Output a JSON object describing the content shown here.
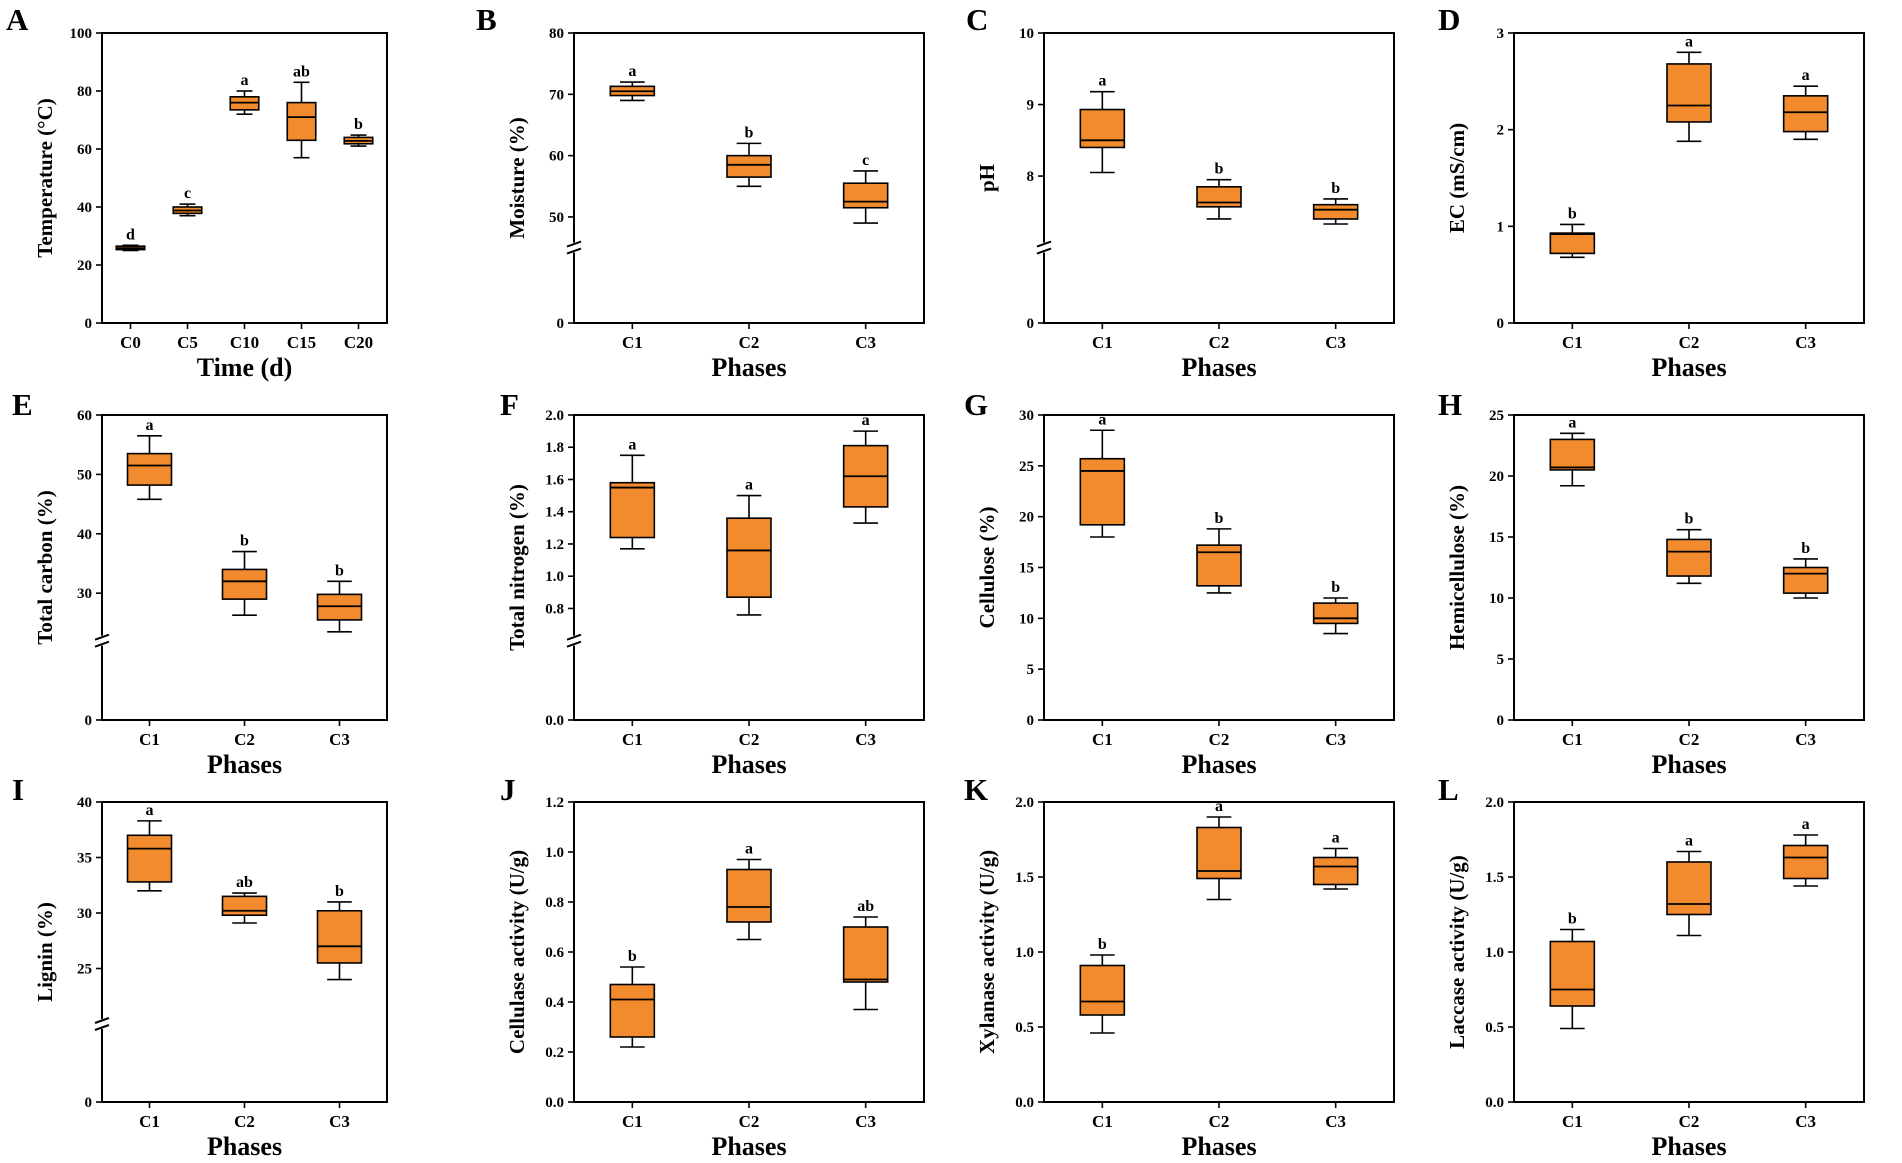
{
  "figure": {
    "box_fill": "#F28A2E",
    "box_stroke": "#000000",
    "axis_color": "#000000"
  },
  "chart_data": [
    {
      "panel": "A",
      "type": "box",
      "ylabel": "Temperature (°C)",
      "xlabel": "Time (d)",
      "ylim": [
        0,
        100
      ],
      "yticks": [
        0,
        20,
        40,
        60,
        80,
        100
      ],
      "axis_break": false,
      "categories": [
        "C0",
        "C5",
        "C10",
        "C15",
        "C20"
      ],
      "boxes": [
        {
          "min": 25,
          "q1": 25.3,
          "median": 25.8,
          "q3": 26.5,
          "max": 26.8,
          "sig": "d"
        },
        {
          "min": 37,
          "q1": 37.8,
          "median": 38.8,
          "q3": 40,
          "max": 41,
          "sig": "c"
        },
        {
          "min": 72,
          "q1": 73.5,
          "median": 76,
          "q3": 78,
          "max": 80,
          "sig": "a"
        },
        {
          "min": 57,
          "q1": 63,
          "median": 71,
          "q3": 76,
          "max": 83,
          "sig": "ab"
        },
        {
          "min": 61,
          "q1": 61.8,
          "median": 62.8,
          "q3": 64,
          "max": 64.8,
          "sig": "b"
        }
      ]
    },
    {
      "panel": "B",
      "type": "box",
      "ylabel": "Moisture (%)",
      "xlabel": "Phases",
      "ylim": [
        0,
        80
      ],
      "yticks": [
        0,
        50,
        60,
        70,
        80
      ],
      "axis_break": true,
      "segments": [
        [
          0,
          0
        ],
        [
          45,
          80
        ]
      ],
      "categories": [
        "C1",
        "C2",
        "C3"
      ],
      "boxes": [
        {
          "min": 69,
          "q1": 69.8,
          "median": 70.5,
          "q3": 71.3,
          "max": 72,
          "sig": "a"
        },
        {
          "min": 55,
          "q1": 56.5,
          "median": 58.5,
          "q3": 60,
          "max": 62,
          "sig": "b"
        },
        {
          "min": 49,
          "q1": 51.5,
          "median": 52.5,
          "q3": 55.5,
          "max": 57.5,
          "sig": "c"
        }
      ]
    },
    {
      "panel": "C",
      "type": "box",
      "ylabel": "pH",
      "xlabel": "Phases",
      "ylim": [
        0,
        10
      ],
      "yticks": [
        0,
        8,
        9,
        10
      ],
      "axis_break": true,
      "segments": [
        [
          0,
          0
        ],
        [
          7,
          10
        ]
      ],
      "categories": [
        "C1",
        "C2",
        "C3"
      ],
      "boxes": [
        {
          "min": 8.05,
          "q1": 8.4,
          "median": 8.5,
          "q3": 8.93,
          "max": 9.18,
          "sig": "a"
        },
        {
          "min": 7.4,
          "q1": 7.57,
          "median": 7.63,
          "q3": 7.85,
          "max": 7.95,
          "sig": "b"
        },
        {
          "min": 7.33,
          "q1": 7.4,
          "median": 7.53,
          "q3": 7.6,
          "max": 7.68,
          "sig": "b"
        }
      ]
    },
    {
      "panel": "D",
      "type": "box",
      "ylabel": "EC (mS/cm)",
      "xlabel": "Phases",
      "ylim": [
        0,
        3
      ],
      "yticks": [
        0,
        1,
        2,
        3
      ],
      "axis_break": false,
      "categories": [
        "C1",
        "C2",
        "C3"
      ],
      "boxes": [
        {
          "min": 0.68,
          "q1": 0.72,
          "median": 0.92,
          "q3": 0.93,
          "max": 1.02,
          "sig": "b"
        },
        {
          "min": 1.88,
          "q1": 2.08,
          "median": 2.25,
          "q3": 2.68,
          "max": 2.8,
          "sig": "a"
        },
        {
          "min": 1.9,
          "q1": 1.98,
          "median": 2.18,
          "q3": 2.35,
          "max": 2.45,
          "sig": "a"
        }
      ]
    },
    {
      "panel": "E",
      "type": "box",
      "ylabel": "Total carbon (%)",
      "xlabel": "Phases",
      "ylim": [
        0,
        60
      ],
      "yticks": [
        0,
        30,
        40,
        50,
        60
      ],
      "axis_break": true,
      "segments": [
        [
          0,
          0
        ],
        [
          22,
          60
        ]
      ],
      "categories": [
        "C1",
        "C2",
        "C3"
      ],
      "boxes": [
        {
          "min": 45.8,
          "q1": 48.2,
          "median": 51.5,
          "q3": 53.5,
          "max": 56.5,
          "sig": "a"
        },
        {
          "min": 26.3,
          "q1": 29,
          "median": 32,
          "q3": 34,
          "max": 37,
          "sig": "b"
        },
        {
          "min": 23.5,
          "q1": 25.5,
          "median": 27.8,
          "q3": 29.8,
          "max": 32,
          "sig": "b"
        }
      ]
    },
    {
      "panel": "F",
      "type": "box",
      "ylabel": "Total nitrogen (%)",
      "xlabel": "Phases",
      "ylim": [
        0,
        2.0
      ],
      "yticks": [
        0.0,
        0.8,
        1.0,
        1.2,
        1.4,
        1.6,
        1.8,
        2.0
      ],
      "axis_break": true,
      "segments": [
        [
          0,
          0
        ],
        [
          0.6,
          2.0
        ]
      ],
      "categories": [
        "C1",
        "C2",
        "C3"
      ],
      "boxes": [
        {
          "min": 1.17,
          "q1": 1.24,
          "median": 1.55,
          "q3": 1.58,
          "max": 1.75,
          "sig": "a"
        },
        {
          "min": 0.76,
          "q1": 0.87,
          "median": 1.16,
          "q3": 1.36,
          "max": 1.5,
          "sig": "a"
        },
        {
          "min": 1.33,
          "q1": 1.43,
          "median": 1.62,
          "q3": 1.81,
          "max": 1.9,
          "sig": "a"
        }
      ]
    },
    {
      "panel": "G",
      "type": "box",
      "ylabel": "Cellulose (%)",
      "xlabel": "Phases",
      "ylim": [
        0,
        30
      ],
      "yticks": [
        0,
        5,
        10,
        15,
        20,
        25,
        30
      ],
      "axis_break": false,
      "categories": [
        "C1",
        "C2",
        "C3"
      ],
      "boxes": [
        {
          "min": 18,
          "q1": 19.2,
          "median": 24.5,
          "q3": 25.7,
          "max": 28.5,
          "sig": "a"
        },
        {
          "min": 12.5,
          "q1": 13.2,
          "median": 16.5,
          "q3": 17.2,
          "max": 18.8,
          "sig": "b"
        },
        {
          "min": 8.5,
          "q1": 9.5,
          "median": 10,
          "q3": 11.5,
          "max": 12,
          "sig": "b"
        }
      ]
    },
    {
      "panel": "H",
      "type": "box",
      "ylabel": "Hemicellulose (%)",
      "xlabel": "Phases",
      "ylim": [
        0,
        25
      ],
      "yticks": [
        0,
        5,
        10,
        15,
        20,
        25
      ],
      "axis_break": false,
      "categories": [
        "C1",
        "C2",
        "C3"
      ],
      "boxes": [
        {
          "min": 19.2,
          "q1": 20.5,
          "median": 20.7,
          "q3": 23,
          "max": 23.5,
          "sig": "a"
        },
        {
          "min": 11.2,
          "q1": 11.8,
          "median": 13.8,
          "q3": 14.8,
          "max": 15.6,
          "sig": "b"
        },
        {
          "min": 10,
          "q1": 10.4,
          "median": 12,
          "q3": 12.5,
          "max": 13.2,
          "sig": "b"
        }
      ]
    },
    {
      "panel": "I",
      "type": "box",
      "ylabel": "Lignin (%)",
      "xlabel": "Phases",
      "ylim": [
        0,
        40
      ],
      "yticks": [
        0,
        25,
        30,
        35,
        40
      ],
      "axis_break": true,
      "segments": [
        [
          0,
          0
        ],
        [
          20,
          40
        ]
      ],
      "categories": [
        "C1",
        "C2",
        "C3"
      ],
      "boxes": [
        {
          "min": 32,
          "q1": 32.8,
          "median": 35.8,
          "q3": 37,
          "max": 38.3,
          "sig": "a"
        },
        {
          "min": 29.1,
          "q1": 29.8,
          "median": 30.2,
          "q3": 31.5,
          "max": 31.8,
          "sig": "ab"
        },
        {
          "min": 24,
          "q1": 25.5,
          "median": 27,
          "q3": 30.2,
          "max": 31,
          "sig": "b"
        }
      ]
    },
    {
      "panel": "J",
      "type": "box",
      "ylabel": "Cellulase activity (U/g)",
      "xlabel": "Phases",
      "ylim": [
        0,
        1.2
      ],
      "yticks": [
        0.0,
        0.2,
        0.4,
        0.6,
        0.8,
        1.0,
        1.2
      ],
      "axis_break": false,
      "categories": [
        "C1",
        "C2",
        "C3"
      ],
      "boxes": [
        {
          "min": 0.22,
          "q1": 0.26,
          "median": 0.41,
          "q3": 0.47,
          "max": 0.54,
          "sig": "b"
        },
        {
          "min": 0.65,
          "q1": 0.72,
          "median": 0.78,
          "q3": 0.93,
          "max": 0.97,
          "sig": "a"
        },
        {
          "min": 0.37,
          "q1": 0.48,
          "median": 0.49,
          "q3": 0.7,
          "max": 0.74,
          "sig": "ab"
        }
      ]
    },
    {
      "panel": "K",
      "type": "box",
      "ylabel": "Xylanase activity (U/g)",
      "xlabel": "Phases",
      "ylim": [
        0,
        2.0
      ],
      "yticks": [
        0.0,
        0.5,
        1.0,
        1.5,
        2.0
      ],
      "axis_break": false,
      "categories": [
        "C1",
        "C2",
        "C3"
      ],
      "boxes": [
        {
          "min": 0.46,
          "q1": 0.58,
          "median": 0.67,
          "q3": 0.91,
          "max": 0.98,
          "sig": "b"
        },
        {
          "min": 1.35,
          "q1": 1.49,
          "median": 1.54,
          "q3": 1.83,
          "max": 1.9,
          "sig": "a"
        },
        {
          "min": 1.42,
          "q1": 1.45,
          "median": 1.57,
          "q3": 1.63,
          "max": 1.69,
          "sig": "a"
        }
      ]
    },
    {
      "panel": "L",
      "type": "box",
      "ylabel": "Laccase activity (U/g)",
      "xlabel": "Phases",
      "ylim": [
        0,
        2.0
      ],
      "yticks": [
        0.0,
        0.5,
        1.0,
        1.5,
        2.0
      ],
      "axis_break": false,
      "categories": [
        "C1",
        "C2",
        "C3"
      ],
      "boxes": [
        {
          "min": 0.49,
          "q1": 0.64,
          "median": 0.75,
          "q3": 1.07,
          "max": 1.15,
          "sig": "b"
        },
        {
          "min": 1.11,
          "q1": 1.25,
          "median": 1.32,
          "q3": 1.6,
          "max": 1.67,
          "sig": "a"
        },
        {
          "min": 1.44,
          "q1": 1.49,
          "median": 1.63,
          "q3": 1.71,
          "max": 1.78,
          "sig": "a"
        }
      ]
    }
  ]
}
